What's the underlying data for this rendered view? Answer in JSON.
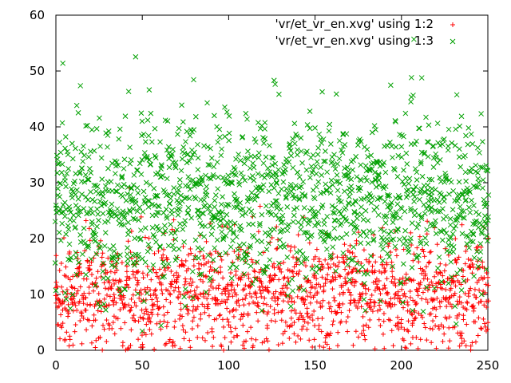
{
  "chart_data": {
    "type": "scatter",
    "xlim": [
      0,
      250
    ],
    "ylim": [
      0,
      60
    ],
    "x_ticks": [
      "0",
      "50",
      "100",
      "150",
      "200",
      "250"
    ],
    "y_ticks": [
      "0",
      "10",
      "20",
      "30",
      "40",
      "50",
      "60"
    ],
    "grid": false,
    "legend_position": "top-right",
    "series": [
      {
        "name": "'vr/et_vr_en.xvg' using 1:2",
        "marker": "plus",
        "color": "#ff0000",
        "points_per_x": 6,
        "band": [
          {
            "x": 0,
            "mean": 10,
            "sd": 5
          },
          {
            "x": 250,
            "mean": 10,
            "sd": 5
          }
        ]
      },
      {
        "name": "'vr/et_vr_en.xvg' using 1:3",
        "marker": "x",
        "color": "#00a000",
        "points_per_x": 6,
        "band": [
          {
            "x": 0,
            "mean": 27,
            "sd": 7.5
          },
          {
            "x": 250,
            "mean": 27,
            "sd": 7.5
          }
        ]
      }
    ]
  }
}
